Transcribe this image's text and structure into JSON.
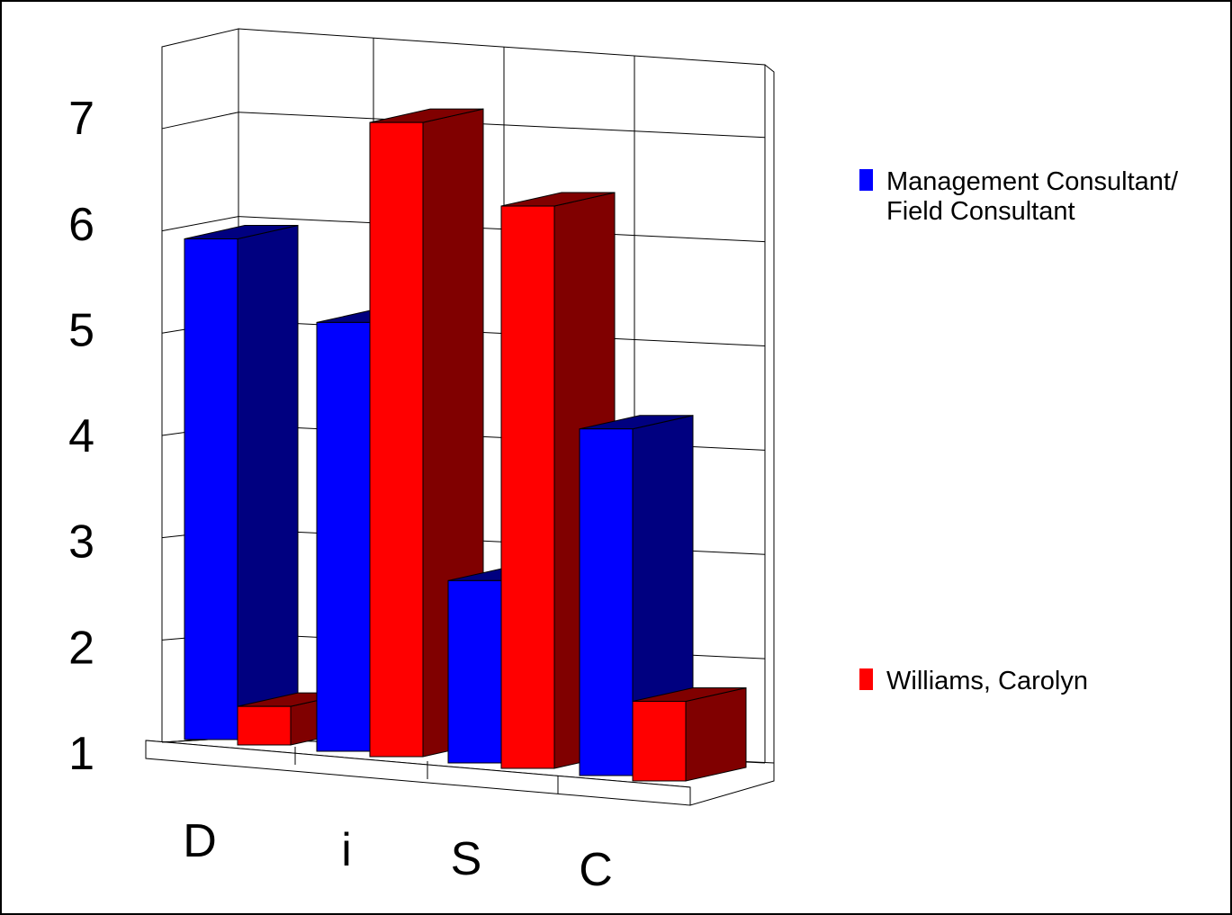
{
  "chart_data": {
    "type": "bar",
    "title": "",
    "xlabel": "",
    "ylabel": "",
    "categories": [
      "D",
      "i",
      "S",
      "C"
    ],
    "y_ticks": [
      "1",
      "2",
      "3",
      "4",
      "5",
      "6",
      "7"
    ],
    "ylim": [
      1,
      7.8
    ],
    "grid": true,
    "legend_position": "right",
    "series": [
      {
        "name": "Management Consultant/ Field Consultant",
        "values": [
          5.7,
          5.0,
          2.6,
          4.2
        ],
        "color": "#0000ff",
        "side_color": "#000080"
      },
      {
        "name": "Williams, Carolyn",
        "values": [
          1.2,
          7.0,
          6.3,
          1.6
        ],
        "color": "#ff0000",
        "side_color": "#800000"
      }
    ]
  }
}
